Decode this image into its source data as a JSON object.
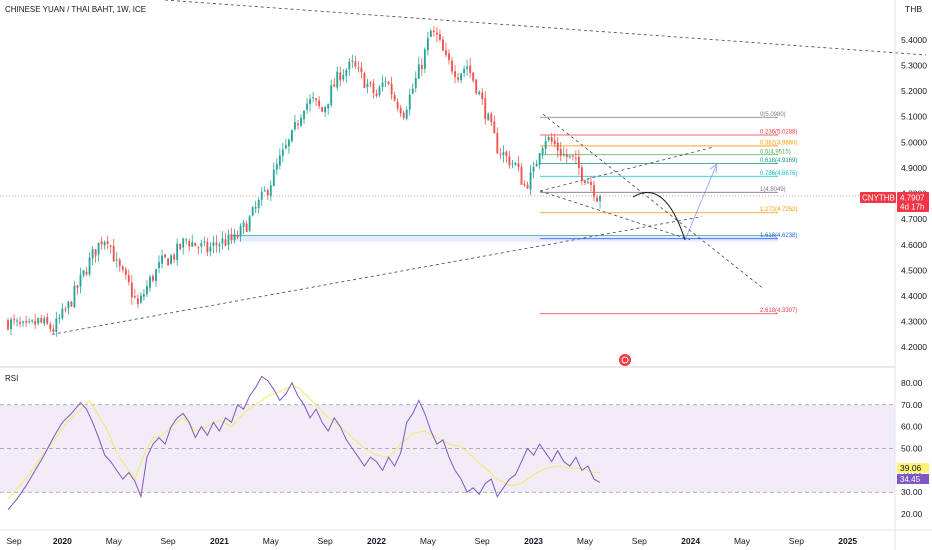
{
  "header": {
    "title": "CHINESE YUAN / THAI BAHT, 1W, ICE",
    "currency": "THB"
  },
  "price_badge": {
    "symbol": "CNYTHB",
    "price": "4.7907",
    "countdown": "4d 17h"
  },
  "rsi_panel": {
    "label": "RSI",
    "value_ma": "39.06",
    "value_rsi": "34.45"
  },
  "colors": {
    "up": "#26a69a",
    "down": "#ef5350",
    "rsi": "#7e57c2",
    "rsi_ma": "#f5e86a",
    "band": "#ede7f6",
    "badge": "#f23645",
    "trend": "#434651"
  },
  "fib_levels": [
    {
      "label": "0(5.0980)",
      "value": 5.098,
      "color": "#787b86"
    },
    {
      "label": "0.236(5.0288)",
      "value": 5.0288,
      "color": "#f23645"
    },
    {
      "label": "0.382(4.9860)",
      "value": 4.986,
      "color": "#ff9800"
    },
    {
      "label": "0.5(4.9515)",
      "value": 4.9515,
      "color": "#4caf50"
    },
    {
      "label": "0.618(4.9169)",
      "value": 4.9169,
      "color": "#089981"
    },
    {
      "label": "0.786(4.8676)",
      "value": 4.8676,
      "color": "#00bcd4"
    },
    {
      "label": "1(4.8049)",
      "value": 4.8049,
      "color": "#787b86"
    },
    {
      "label": "1.272(4.7252)",
      "value": 4.7252,
      "color": "#ff9800"
    },
    {
      "label": "1.618(4.6238)",
      "value": 4.6238,
      "color": "#2962ff"
    },
    {
      "label": "2.618(4.3307)",
      "value": 4.3307,
      "color": "#f23645"
    }
  ],
  "chart_data": [
    {
      "type": "candlestick",
      "title": "CHINESE YUAN / THAI BAHT, 1W, ICE",
      "ylim": [
        4.15,
        5.47
      ],
      "y_ticks": [
        "4.2000",
        "4.3000",
        "4.4000",
        "4.5000",
        "4.6000",
        "4.7000",
        "4.8000",
        "4.9000",
        "5.0000",
        "5.1000",
        "5.2000",
        "5.3000",
        "5.4000"
      ],
      "x_ticks": [
        {
          "label": "Sep",
          "bold": false
        },
        {
          "label": "2020",
          "bold": true
        },
        {
          "label": "May",
          "bold": false
        },
        {
          "label": "Sep",
          "bold": false
        },
        {
          "label": "2021",
          "bold": true
        },
        {
          "label": "May",
          "bold": false
        },
        {
          "label": "Sep",
          "bold": false
        },
        {
          "label": "2022",
          "bold": true
        },
        {
          "label": "May",
          "bold": false
        },
        {
          "label": "Sep",
          "bold": false
        },
        {
          "label": "2023",
          "bold": true
        },
        {
          "label": "May",
          "bold": false
        },
        {
          "label": "Sep",
          "bold": false
        },
        {
          "label": "2024",
          "bold": true
        },
        {
          "label": "May",
          "bold": false
        },
        {
          "label": "Sep",
          "bold": false
        },
        {
          "label": "2025",
          "bold": true
        }
      ],
      "x_tick_weeks": [
        -16,
        0,
        17,
        35,
        52,
        69,
        87,
        104,
        121,
        139,
        156,
        173,
        191,
        208,
        225,
        243,
        260
      ],
      "weeks_start": -18,
      "weeks_end": 274,
      "anchors": [
        [
          -18,
          4.3
        ],
        [
          -12,
          4.27
        ],
        [
          -8,
          4.3
        ],
        [
          -3,
          4.27
        ],
        [
          2,
          4.36
        ],
        [
          6,
          4.46
        ],
        [
          10,
          4.56
        ],
        [
          13,
          4.62
        ],
        [
          15,
          4.63
        ],
        [
          18,
          4.52
        ],
        [
          22,
          4.44
        ],
        [
          25,
          4.36
        ],
        [
          29,
          4.46
        ],
        [
          33,
          4.53
        ],
        [
          37,
          4.56
        ],
        [
          41,
          4.62
        ],
        [
          44,
          4.6
        ],
        [
          48,
          4.58
        ],
        [
          52,
          4.61
        ],
        [
          57,
          4.62
        ],
        [
          61,
          4.68
        ],
        [
          65,
          4.76
        ],
        [
          68,
          4.82
        ],
        [
          72,
          4.93
        ],
        [
          76,
          5.02
        ],
        [
          80,
          5.15
        ],
        [
          83,
          5.16
        ],
        [
          86,
          5.12
        ],
        [
          89,
          5.2
        ],
        [
          92,
          5.27
        ],
        [
          96,
          5.3
        ],
        [
          100,
          5.24
        ],
        [
          104,
          5.18
        ],
        [
          107,
          5.25
        ],
        [
          110,
          5.17
        ],
        [
          113,
          5.12
        ],
        [
          116,
          5.21
        ],
        [
          119,
          5.31
        ],
        [
          122,
          5.43
        ],
        [
          124,
          5.41
        ],
        [
          127,
          5.32
        ],
        [
          131,
          5.27
        ],
        [
          134,
          5.3
        ],
        [
          137,
          5.22
        ],
        [
          140,
          5.12
        ],
        [
          144,
          4.98
        ],
        [
          147,
          4.94
        ],
        [
          150,
          4.91
        ],
        [
          153,
          4.83
        ],
        [
          156,
          4.88
        ],
        [
          158,
          4.98
        ],
        [
          160,
          5.02
        ],
        [
          163,
          4.99
        ],
        [
          166,
          4.95
        ],
        [
          169,
          4.93
        ],
        [
          172,
          4.88
        ],
        [
          175,
          4.84
        ],
        [
          177,
          4.79
        ],
        [
          178,
          4.79
        ]
      ],
      "last_price": 4.7907
    },
    {
      "type": "line",
      "title": "RSI",
      "ylim": [
        15,
        85
      ],
      "y_ticks": [
        "20.00",
        "30.00",
        "40.00",
        "50.00",
        "60.00",
        "70.00",
        "80.00"
      ],
      "band": [
        30,
        70
      ],
      "levels": [
        30,
        50,
        70
      ],
      "series": [
        {
          "values": [
            [
              -18,
              27
            ],
            [
              -14,
              33
            ],
            [
              -10,
              40
            ],
            [
              -6,
              48
            ],
            [
              -2,
              55
            ],
            [
              2,
              63
            ],
            [
              6,
              68
            ],
            [
              9,
              72
            ],
            [
              12,
              65
            ],
            [
              15,
              58
            ],
            [
              18,
              48
            ],
            [
              21,
              42
            ],
            [
              24,
              36
            ],
            [
              27,
              47
            ],
            [
              30,
              55
            ],
            [
              33,
              56
            ],
            [
              36,
              60
            ],
            [
              40,
              64
            ],
            [
              44,
              58
            ],
            [
              48,
              60
            ],
            [
              52,
              63
            ],
            [
              56,
              60
            ],
            [
              60,
              66
            ],
            [
              64,
              70
            ],
            [
              68,
              74
            ],
            [
              72,
              76
            ],
            [
              75,
              78
            ],
            [
              78,
              78
            ],
            [
              81,
              74
            ],
            [
              84,
              70
            ],
            [
              88,
              64
            ],
            [
              92,
              60
            ],
            [
              96,
              55
            ],
            [
              100,
              50
            ],
            [
              104,
              47
            ],
            [
              108,
              46
            ],
            [
              112,
              52
            ],
            [
              116,
              57
            ],
            [
              120,
              58
            ],
            [
              124,
              55
            ],
            [
              128,
              52
            ],
            [
              132,
              51
            ],
            [
              136,
              46
            ],
            [
              140,
              41
            ],
            [
              144,
              36
            ],
            [
              148,
              33
            ],
            [
              152,
              34
            ],
            [
              156,
              38
            ],
            [
              160,
              41
            ],
            [
              164,
              42
            ],
            [
              168,
              41
            ],
            [
              172,
              41
            ],
            [
              176,
              39
            ],
            [
              178,
              39
            ]
          ]
        },
        {
          "values": [
            [
              -18,
              22
            ],
            [
              -15,
              27
            ],
            [
              -12,
              33
            ],
            [
              -9,
              40
            ],
            [
              -6,
              47
            ],
            [
              -3,
              55
            ],
            [
              0,
              62
            ],
            [
              3,
              66
            ],
            [
              6,
              71
            ],
            [
              8,
              68
            ],
            [
              10,
              62
            ],
            [
              12,
              55
            ],
            [
              14,
              47
            ],
            [
              16,
              44
            ],
            [
              18,
              40
            ],
            [
              20,
              36
            ],
            [
              22,
              39
            ],
            [
              24,
              35
            ],
            [
              26,
              28
            ],
            [
              28,
              46
            ],
            [
              30,
              52
            ],
            [
              32,
              55
            ],
            [
              34,
              52
            ],
            [
              36,
              60
            ],
            [
              38,
              64
            ],
            [
              40,
              66
            ],
            [
              42,
              62
            ],
            [
              44,
              55
            ],
            [
              46,
              60
            ],
            [
              48,
              56
            ],
            [
              50,
              62
            ],
            [
              52,
              58
            ],
            [
              54,
              64
            ],
            [
              56,
              62
            ],
            [
              58,
              70
            ],
            [
              60,
              68
            ],
            [
              62,
              74
            ],
            [
              64,
              78
            ],
            [
              66,
              83
            ],
            [
              68,
              81
            ],
            [
              70,
              77
            ],
            [
              72,
              72
            ],
            [
              74,
              75
            ],
            [
              76,
              80
            ],
            [
              78,
              74
            ],
            [
              80,
              70
            ],
            [
              82,
              64
            ],
            [
              84,
              68
            ],
            [
              86,
              62
            ],
            [
              88,
              58
            ],
            [
              90,
              64
            ],
            [
              92,
              60
            ],
            [
              94,
              54
            ],
            [
              96,
              50
            ],
            [
              98,
              46
            ],
            [
              100,
              42
            ],
            [
              102,
              46
            ],
            [
              104,
              44
            ],
            [
              106,
              40
            ],
            [
              108,
              46
            ],
            [
              110,
              42
            ],
            [
              112,
              48
            ],
            [
              114,
              62
            ],
            [
              116,
              66
            ],
            [
              118,
              72
            ],
            [
              120,
              66
            ],
            [
              122,
              58
            ],
            [
              124,
              52
            ],
            [
              126,
              54
            ],
            [
              128,
              46
            ],
            [
              130,
              40
            ],
            [
              132,
              36
            ],
            [
              134,
              30
            ],
            [
              136,
              32
            ],
            [
              138,
              29
            ],
            [
              140,
              34
            ],
            [
              142,
              36
            ],
            [
              144,
              28
            ],
            [
              146,
              32
            ],
            [
              148,
              36
            ],
            [
              150,
              38
            ],
            [
              152,
              44
            ],
            [
              154,
              50
            ],
            [
              156,
              47
            ],
            [
              158,
              52
            ],
            [
              160,
              48
            ],
            [
              162,
              44
            ],
            [
              164,
              49
            ],
            [
              166,
              44
            ],
            [
              168,
              42
            ],
            [
              170,
              46
            ],
            [
              172,
              40
            ],
            [
              174,
              42
            ],
            [
              176,
              36
            ],
            [
              178,
              34.45
            ]
          ]
        }
      ]
    }
  ]
}
